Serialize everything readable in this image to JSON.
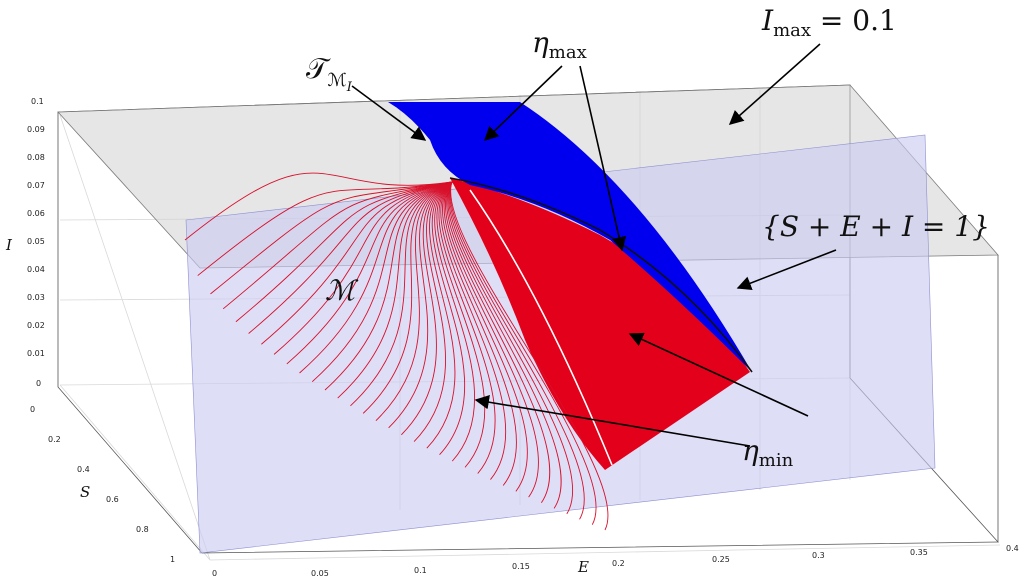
{
  "axes": {
    "i_label": "I",
    "s_label": "S",
    "e_label": "E",
    "i_ticks": [
      "0.1",
      "0.09",
      "0.08",
      "0.07",
      "0.06",
      "0.05",
      "0.04",
      "0.03",
      "0.02",
      "0.01",
      "0"
    ],
    "s_ticks": [
      "0",
      "0.2",
      "0.4",
      "0.6",
      "0.8",
      "1"
    ],
    "e_ticks": [
      "0",
      "0.05",
      "0.1",
      "0.15",
      "0.2",
      "0.25",
      "0.3",
      "0.35",
      "0.4"
    ]
  },
  "annotations": {
    "tangent": {
      "main": "𝒯",
      "sub": "ℳ",
      "subsub": "I"
    },
    "eta_max": {
      "main": "η",
      "sub": "max"
    },
    "i_max": {
      "main": "I",
      "sub": "max",
      "rest": " = 0.1"
    },
    "plane": "{S + E + I = 1}",
    "manifold": "ℳ",
    "eta_min": {
      "main": "η",
      "sub": "min"
    }
  },
  "colors": {
    "blue_surface": "#0000ee",
    "red_surface": "#e3001b",
    "red_curves": "#d90f2a",
    "plane_fill": "#c9caf0",
    "imax_plane_fill": "#d2d2d2"
  }
}
